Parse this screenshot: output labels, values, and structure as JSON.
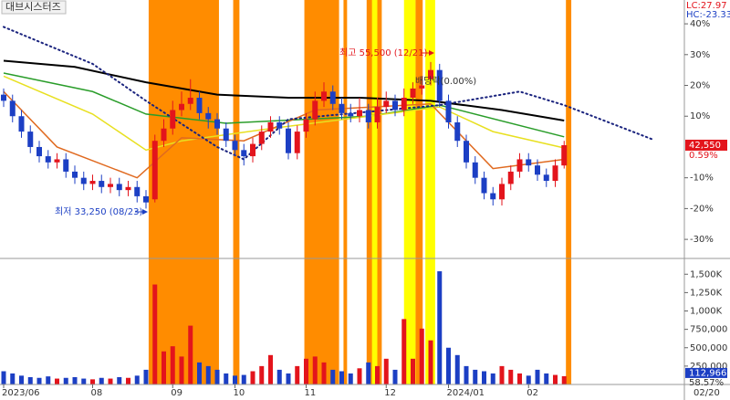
{
  "chart_data": [
    {
      "type": "candlestick",
      "title": "대브시스터즈",
      "lc_label": "LC:27.97",
      "hc_label": "HC:-23.33",
      "categories": [
        "2023/06",
        null,
        null,
        null,
        null,
        null,
        null,
        null,
        null,
        null,
        "08",
        null,
        null,
        null,
        null,
        null,
        null,
        null,
        null,
        "09",
        null,
        null,
        null,
        null,
        null,
        null,
        "10",
        null,
        null,
        null,
        null,
        null,
        null,
        null,
        "11",
        null,
        null,
        null,
        null,
        null,
        null,
        null,
        null,
        "12",
        null,
        null,
        null,
        null,
        null,
        null,
        "2024/01",
        null,
        null,
        null,
        null,
        null,
        null,
        null,
        null,
        "02",
        null,
        null,
        null,
        null
      ],
      "candles": {
        "open": [
          17,
          15,
          10,
          5,
          0,
          -3,
          -5,
          -4,
          -8,
          -10,
          -12,
          -11,
          -13,
          -12,
          -14,
          -13,
          -16,
          -17,
          2,
          6,
          12,
          14,
          16,
          11,
          9,
          6,
          2,
          -1,
          -3,
          1,
          5,
          8,
          6,
          -2,
          5,
          9,
          15,
          18,
          14,
          11,
          10,
          12,
          8,
          13,
          15,
          12,
          16,
          19,
          22,
          25,
          15,
          8,
          2,
          -5,
          -10,
          -15,
          -17,
          -12,
          -8,
          -4,
          -6,
          -9,
          -11,
          -6
        ],
        "high": [
          19,
          17,
          12,
          7,
          2,
          -1,
          -2,
          -2,
          -6,
          -8,
          -9,
          -9,
          -10,
          -10,
          -11,
          -11,
          -14,
          4,
          9,
          15,
          18,
          22,
          18,
          13,
          11,
          8,
          4,
          1,
          3,
          7,
          10,
          10,
          8,
          7,
          11,
          18,
          21,
          20,
          16,
          14,
          16,
          14,
          16,
          18,
          17,
          19,
          21,
          23,
          27.6,
          27,
          17,
          10,
          4,
          -3,
          -8,
          -13,
          -10,
          -6,
          -2,
          -2,
          -4,
          -7,
          -4,
          2
        ],
        "low": [
          13,
          8,
          3,
          -2,
          -5,
          -7,
          -7,
          -10,
          -12,
          -14,
          -14,
          -15,
          -15,
          -16,
          -16,
          -18,
          -20,
          -18,
          0,
          4,
          10,
          12,
          9,
          6,
          4,
          0,
          -3,
          -6,
          -5,
          -1,
          3,
          4,
          -4,
          -4,
          3,
          7,
          13,
          12,
          9,
          8,
          8,
          6,
          6,
          11,
          10,
          10,
          14,
          17,
          20,
          13,
          6,
          0,
          -7,
          -12,
          -17,
          -19,
          -19,
          -14,
          -10,
          -8,
          -11,
          -13,
          -13,
          -7
        ],
        "close": [
          15,
          10,
          5,
          0,
          -3,
          -5,
          -4,
          -8,
          -10,
          -12,
          -11,
          -13,
          -12,
          -14,
          -13,
          -16,
          -18,
          2,
          6,
          12,
          14,
          16,
          11,
          9,
          6,
          2,
          -1,
          -3,
          1,
          5,
          8,
          6,
          -2,
          5,
          9,
          15,
          18,
          14,
          11,
          10,
          12,
          8,
          13,
          15,
          12,
          16,
          19,
          20,
          25,
          15,
          8,
          2,
          -5,
          -10,
          -15,
          -17,
          -12,
          -8,
          -4,
          -6,
          -9,
          -11,
          -6,
          0.59
        ]
      },
      "up_color": "#e3141c",
      "down_color": "#1c3fc4",
      "lines": [
        {
          "color": "#000000",
          "width": 2,
          "dashed": false,
          "x": [
            0,
            8,
            16,
            24,
            32,
            40,
            48,
            56,
            63
          ],
          "values": [
            28,
            26,
            21,
            17,
            16,
            16,
            15,
            12,
            8.6
          ]
        },
        {
          "color": "#2a9d2a",
          "width": 1.5,
          "dashed": false,
          "x": [
            0,
            10,
            16,
            25,
            41,
            49,
            63
          ],
          "values": [
            24,
            18,
            10.7,
            7.7,
            10,
            13.6,
            3.3
          ]
        },
        {
          "color": "#e8e020",
          "width": 1.5,
          "dashed": false,
          "x": [
            0,
            10,
            16,
            20,
            30,
            41,
            49,
            55,
            63
          ],
          "values": [
            23,
            10.7,
            -1,
            2,
            6,
            10,
            13,
            5,
            -0.3
          ]
        },
        {
          "color": "#e06a20",
          "width": 1.5,
          "dashed": false,
          "x": [
            0,
            6,
            15,
            20,
            27,
            35,
            48,
            55,
            63
          ],
          "values": [
            18,
            0,
            -10,
            3,
            2,
            12,
            14,
            -7,
            -4
          ]
        },
        {
          "color": "#1a237e",
          "width": 2,
          "dashed": true,
          "x": [
            0,
            10,
            16,
            24,
            27,
            32,
            49,
            58,
            63,
            73
          ],
          "values": [
            39,
            27,
            15,
            0,
            -4,
            9,
            13.6,
            18,
            13.6,
            2.4
          ]
        }
      ],
      "highlight_bands": [
        {
          "start": 16.3,
          "end": 24.2,
          "color": "#ff8c00"
        },
        {
          "start": 25.8,
          "end": 26.5,
          "color": "#ff8c00"
        },
        {
          "start": 33.8,
          "end": 37.7,
          "color": "#ff8c00"
        },
        {
          "start": 38.2,
          "end": 38.6,
          "color": "#ff8c00"
        },
        {
          "start": 40.8,
          "end": 42.5,
          "color": "#ff8c00"
        },
        {
          "start": 41.4,
          "end": 42.0,
          "color": "#ffff00"
        },
        {
          "start": 45.0,
          "end": 46.3,
          "color": "#ffff00"
        },
        {
          "start": 46.3,
          "end": 47.1,
          "color": "#ff8c00"
        },
        {
          "start": 47.4,
          "end": 48.5,
          "color": "#ffff00"
        },
        {
          "start": 63.2,
          "end": 63.8,
          "color": "#ff8c00"
        }
      ],
      "ylim": [
        -35.9,
        42.4
      ],
      "yticks": [
        {
          "value": 40,
          "label": "40%"
        },
        {
          "value": 30,
          "label": "30%"
        },
        {
          "value": 20,
          "label": "20%"
        },
        {
          "value": 10,
          "label": "10%"
        },
        {
          "value": -10,
          "label": "-10%"
        },
        {
          "value": -20,
          "label": "-20%"
        },
        {
          "value": -30,
          "label": "-30%"
        }
      ],
      "last_price_label": "42,550",
      "last_change_label": "0.59%",
      "annotations": [
        {
          "text": "최고 55,500 (12/21)"
        },
        {
          "text": "최저 33,250 (08/23)"
        },
        {
          "text": "배당락(0.00%)"
        }
      ]
    },
    {
      "type": "bar",
      "values": [
        180000,
        150000,
        120000,
        100000,
        90000,
        110000,
        80000,
        90000,
        100000,
        80000,
        70000,
        90000,
        80000,
        100000,
        90000,
        120000,
        200000,
        1360000,
        450000,
        520000,
        380000,
        800000,
        300000,
        250000,
        200000,
        150000,
        120000,
        130000,
        180000,
        250000,
        400000,
        200000,
        150000,
        250000,
        350000,
        380000,
        300000,
        200000,
        180000,
        150000,
        220000,
        300000,
        250000,
        350000,
        200000,
        890000,
        350000,
        760000,
        600000,
        1540000,
        500000,
        400000,
        250000,
        200000,
        180000,
        150000,
        250000,
        200000,
        150000,
        120000,
        200000,
        150000,
        130000,
        112966
      ],
      "value_labels_last": "112,966",
      "ratio_label": "58.57%",
      "ylim": [
        0,
        1640000
      ],
      "yticks": [
        {
          "value": 1500000,
          "label": "1,500K"
        },
        {
          "value": 1250000,
          "label": "1,250K"
        },
        {
          "value": 1000000,
          "label": "1,000K"
        },
        {
          "value": 750000,
          "label": "750,000"
        },
        {
          "value": 500000,
          "label": "500,000"
        },
        {
          "value": 250000,
          "label": "250,000"
        }
      ],
      "date_label": "02/20"
    }
  ]
}
